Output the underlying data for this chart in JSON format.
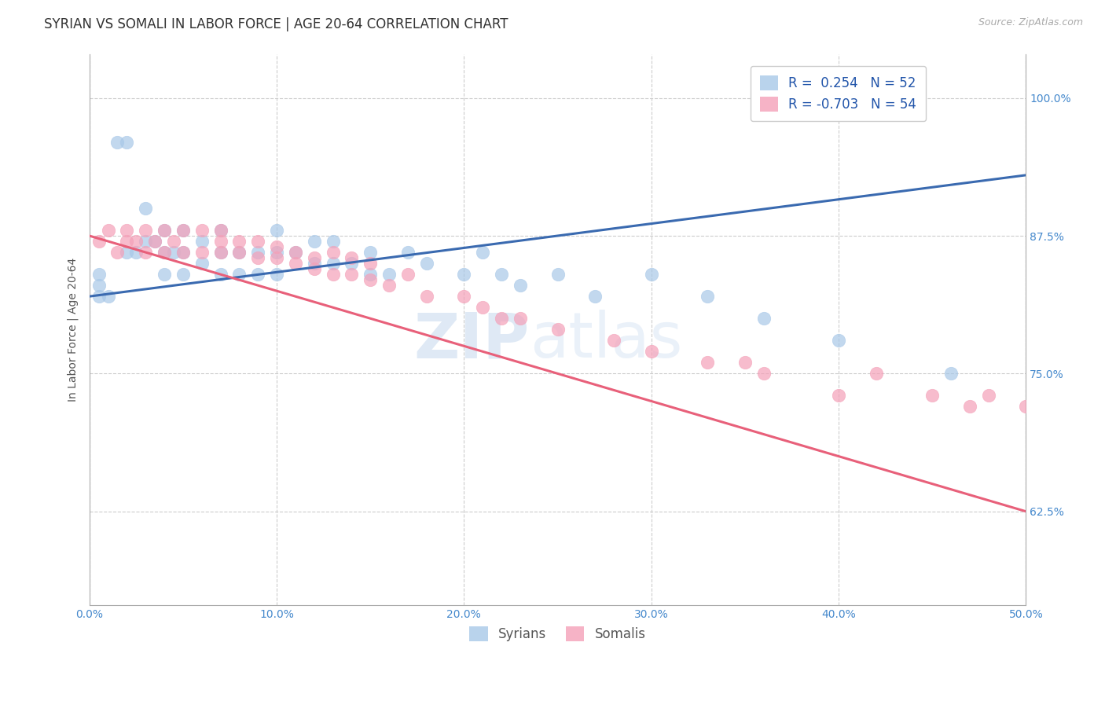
{
  "title": "SYRIAN VS SOMALI IN LABOR FORCE | AGE 20-64 CORRELATION CHART",
  "source": "Source: ZipAtlas.com",
  "ylabel": "In Labor Force | Age 20-64",
  "xlim": [
    0.0,
    0.5
  ],
  "ylim": [
    0.54,
    1.04
  ],
  "ytick_positions": [
    0.625,
    0.75,
    0.875,
    1.0
  ],
  "xtick_positions": [
    0.0,
    0.1,
    0.2,
    0.3,
    0.4,
    0.5
  ],
  "xlabel_ticks": [
    "0.0%",
    "10.0%",
    "20.0%",
    "30.0%",
    "40.0%",
    "50.0%"
  ],
  "legend_blue_label": "R =  0.254   N = 52",
  "legend_pink_label": "R = -0.703   N = 54",
  "blue_color": "#a8c8e8",
  "pink_color": "#f4a0b8",
  "blue_line_color": "#3a6ab0",
  "pink_line_color": "#e8607a",
  "watermark_zip": "ZIP",
  "watermark_atlas": "atlas",
  "syrians_x": [
    0.005,
    0.005,
    0.005,
    0.01,
    0.015,
    0.02,
    0.02,
    0.025,
    0.03,
    0.03,
    0.035,
    0.04,
    0.04,
    0.04,
    0.045,
    0.05,
    0.05,
    0.05,
    0.06,
    0.06,
    0.07,
    0.07,
    0.07,
    0.08,
    0.08,
    0.09,
    0.09,
    0.1,
    0.1,
    0.1,
    0.11,
    0.12,
    0.12,
    0.13,
    0.13,
    0.14,
    0.15,
    0.15,
    0.16,
    0.17,
    0.18,
    0.2,
    0.21,
    0.22,
    0.23,
    0.25,
    0.27,
    0.3,
    0.33,
    0.36,
    0.4,
    0.46
  ],
  "syrians_y": [
    0.82,
    0.83,
    0.84,
    0.82,
    0.96,
    0.86,
    0.96,
    0.86,
    0.87,
    0.9,
    0.87,
    0.84,
    0.86,
    0.88,
    0.86,
    0.84,
    0.86,
    0.88,
    0.85,
    0.87,
    0.84,
    0.86,
    0.88,
    0.84,
    0.86,
    0.84,
    0.86,
    0.84,
    0.86,
    0.88,
    0.86,
    0.85,
    0.87,
    0.85,
    0.87,
    0.85,
    0.84,
    0.86,
    0.84,
    0.86,
    0.85,
    0.84,
    0.86,
    0.84,
    0.83,
    0.84,
    0.82,
    0.84,
    0.82,
    0.8,
    0.78,
    0.75
  ],
  "somalis_x": [
    0.005,
    0.01,
    0.015,
    0.02,
    0.02,
    0.025,
    0.03,
    0.03,
    0.035,
    0.04,
    0.04,
    0.045,
    0.05,
    0.05,
    0.06,
    0.06,
    0.07,
    0.07,
    0.07,
    0.08,
    0.08,
    0.09,
    0.09,
    0.1,
    0.1,
    0.11,
    0.11,
    0.12,
    0.12,
    0.13,
    0.13,
    0.14,
    0.14,
    0.15,
    0.15,
    0.16,
    0.17,
    0.18,
    0.2,
    0.21,
    0.22,
    0.23,
    0.25,
    0.28,
    0.3,
    0.33,
    0.36,
    0.4,
    0.42,
    0.45,
    0.47,
    0.48,
    0.5,
    0.35
  ],
  "somalis_y": [
    0.87,
    0.88,
    0.86,
    0.87,
    0.88,
    0.87,
    0.86,
    0.88,
    0.87,
    0.86,
    0.88,
    0.87,
    0.86,
    0.88,
    0.86,
    0.88,
    0.86,
    0.87,
    0.88,
    0.86,
    0.87,
    0.855,
    0.87,
    0.855,
    0.865,
    0.85,
    0.86,
    0.845,
    0.855,
    0.84,
    0.86,
    0.84,
    0.855,
    0.835,
    0.85,
    0.83,
    0.84,
    0.82,
    0.82,
    0.81,
    0.8,
    0.8,
    0.79,
    0.78,
    0.77,
    0.76,
    0.75,
    0.73,
    0.75,
    0.73,
    0.72,
    0.73,
    0.72,
    0.76
  ],
  "background_color": "#ffffff",
  "grid_color": "#cccccc",
  "title_fontsize": 12,
  "axis_label_fontsize": 10,
  "tick_fontsize": 10,
  "legend_fontsize": 12,
  "source_fontsize": 9
}
